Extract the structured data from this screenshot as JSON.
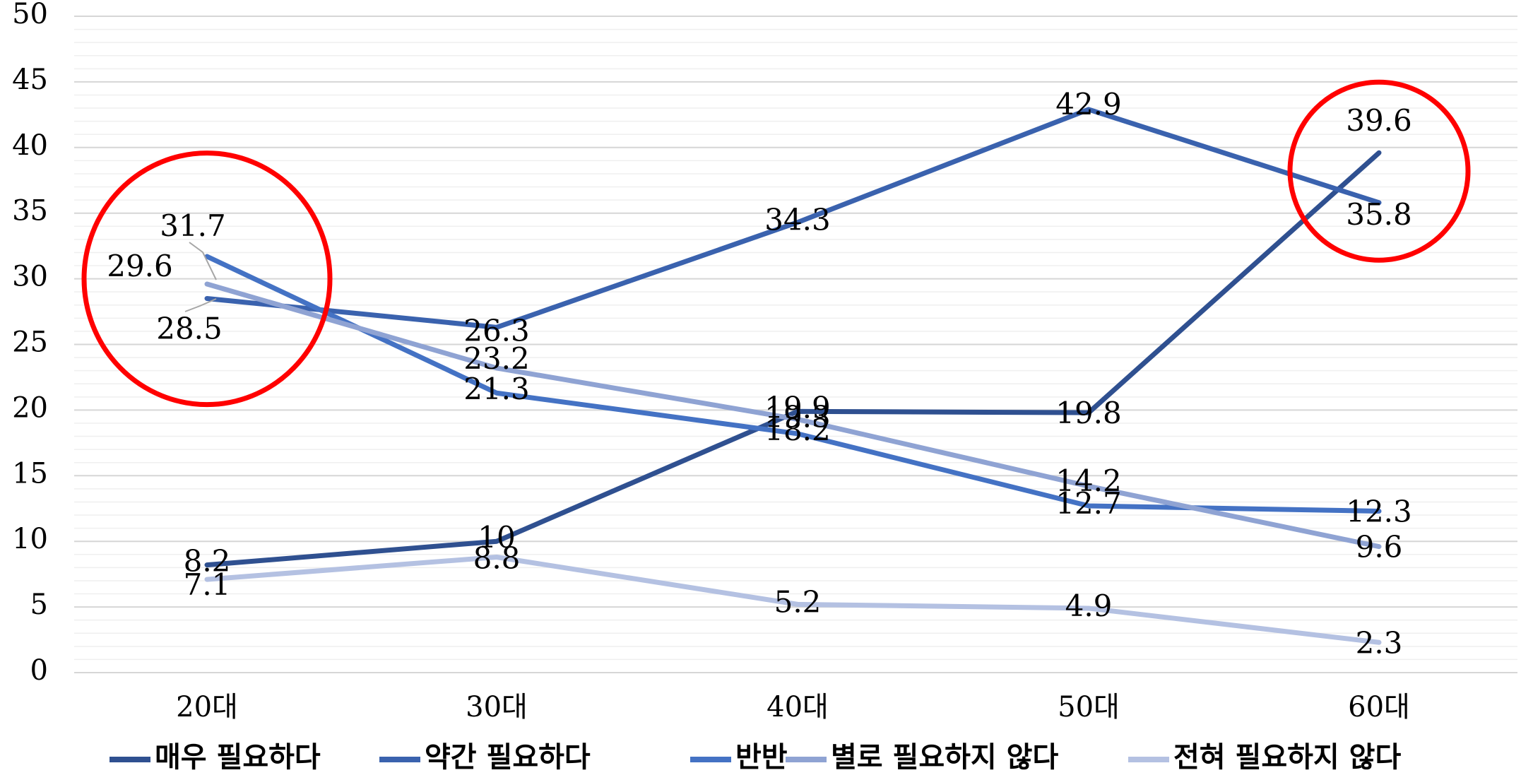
{
  "chart_data": {
    "type": "line",
    "categories": [
      "20대",
      "30대",
      "40대",
      "50대",
      "60대"
    ],
    "ylim": [
      0,
      50
    ],
    "yticks": [
      "0",
      "5",
      "10",
      "15",
      "20",
      "25",
      "30",
      "35",
      "40",
      "45",
      "50"
    ],
    "grid": true,
    "legend_position": "bottom",
    "series": [
      {
        "name": "매우 필요하다",
        "values": [
          8.2,
          10,
          19.9,
          19.8,
          39.6
        ],
        "labels": [
          "8.2",
          "10",
          "19.9",
          "19.8",
          "39.6"
        ],
        "color": "#2F5090"
      },
      {
        "name": "약간 필요하다",
        "values": [
          28.5,
          26.3,
          34.3,
          42.9,
          35.8
        ],
        "labels": [
          "28.5",
          "26.3",
          "34.3",
          "42.9",
          "35.8"
        ],
        "color": "#3A62AE"
      },
      {
        "name": "반반",
        "values": [
          31.7,
          21.3,
          18.2,
          12.7,
          12.3
        ],
        "labels": [
          "31.7",
          "21.3",
          "18.2",
          "12.7",
          "12.3"
        ],
        "color": "#4472C4"
      },
      {
        "name": "별로 필요하지 않다",
        "values": [
          29.6,
          23.2,
          19.3,
          14.2,
          9.6
        ],
        "labels": [
          "29.6",
          "23.2",
          "19.3",
          "14.2",
          "9.6"
        ],
        "color": "#8FA3D3"
      },
      {
        "name": "전혀 필요하지 않다",
        "values": [
          7.1,
          8.8,
          5.2,
          4.9,
          2.3
        ],
        "labels": [
          "7.1",
          "8.8",
          "5.2",
          "4.9",
          "2.3"
        ],
        "color": "#B4C1E2"
      }
    ],
    "annotations": [
      {
        "type": "circle",
        "category_index": 0,
        "value": 30,
        "color": "#FF0000"
      },
      {
        "type": "circle",
        "category_index": 4,
        "value": 38.2,
        "color": "#FF0000"
      }
    ]
  }
}
